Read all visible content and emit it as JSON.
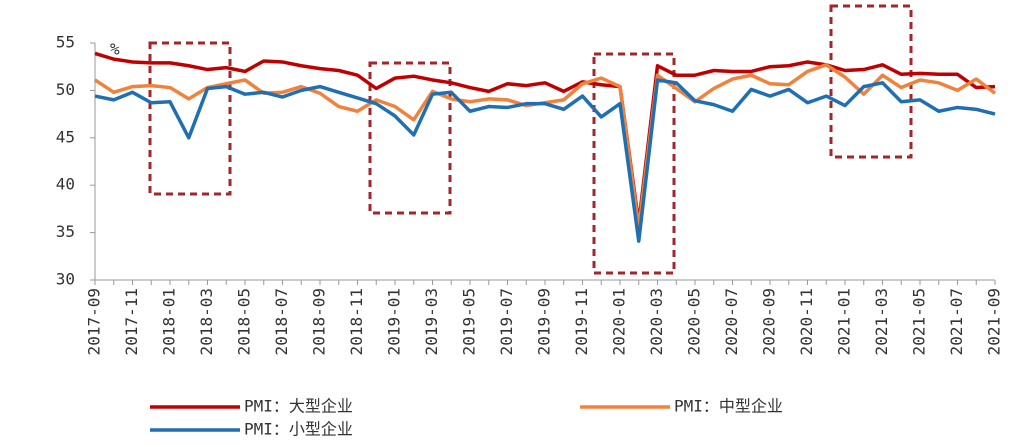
{
  "chart_data": {
    "type": "line",
    "y_unit": "%",
    "categories": [
      "2017-09",
      null,
      "2017-11",
      null,
      "2018-01",
      null,
      "2018-03",
      null,
      "2018-05",
      null,
      "2018-07",
      null,
      "2018-09",
      null,
      "2018-11",
      null,
      "2019-01",
      null,
      "2019-03",
      null,
      "2019-05",
      null,
      "2019-07",
      null,
      "2019-09",
      null,
      "2019-11",
      null,
      "2020-01",
      null,
      "2020-03",
      null,
      "2020-05",
      null,
      "2020-07",
      null,
      "2020-09",
      null,
      "2020-11",
      null,
      "2021-01",
      null,
      "2021-03",
      null,
      "2021-05",
      null,
      "2021-07",
      null,
      "2021-09"
    ],
    "series": [
      {
        "name": "PMI：大型企业",
        "color": "#c00000",
        "values": [
          53.9,
          53.3,
          53.0,
          52.9,
          52.9,
          52.6,
          52.2,
          52.4,
          52.0,
          53.1,
          53.0,
          52.6,
          52.3,
          52.1,
          51.6,
          50.2,
          51.3,
          51.5,
          51.1,
          50.8,
          50.3,
          49.9,
          50.7,
          50.5,
          50.8,
          49.9,
          50.9,
          50.6,
          50.4,
          36.0,
          52.6,
          51.6,
          51.6,
          52.1,
          52.0,
          52.0,
          52.5,
          52.6,
          53.0,
          52.7,
          52.1,
          52.2,
          52.7,
          51.7,
          51.8,
          51.7,
          51.7,
          50.3,
          50.4
        ]
      },
      {
        "name": "PMI：中型企业",
        "color": "#f0823c",
        "values": [
          51.1,
          49.8,
          50.4,
          50.5,
          50.3,
          49.1,
          50.3,
          50.7,
          51.1,
          49.7,
          49.8,
          50.4,
          49.7,
          48.3,
          47.8,
          49.0,
          48.3,
          46.9,
          49.9,
          49.1,
          48.8,
          49.1,
          49.0,
          48.4,
          48.7,
          49.0,
          50.7,
          51.3,
          50.4,
          35.5,
          51.6,
          50.2,
          48.8,
          50.2,
          51.2,
          51.6,
          50.7,
          50.6,
          52.0,
          52.7,
          51.4,
          49.6,
          51.6,
          50.3,
          51.1,
          50.8,
          50.0,
          51.2,
          49.7
        ]
      },
      {
        "name": "PMI：小型企业",
        "color": "#1f6fb2",
        "values": [
          49.4,
          49.0,
          49.8,
          48.7,
          48.8,
          45.0,
          50.2,
          50.4,
          49.6,
          49.8,
          49.3,
          50.0,
          50.4,
          49.8,
          49.2,
          48.6,
          47.3,
          45.3,
          49.6,
          49.8,
          47.8,
          48.3,
          48.2,
          48.6,
          48.6,
          48.0,
          49.4,
          47.2,
          48.6,
          34.1,
          51.1,
          50.8,
          48.9,
          48.5,
          47.8,
          50.1,
          49.4,
          50.1,
          48.7,
          49.4,
          48.4,
          50.4,
          50.8,
          48.8,
          49.0,
          47.8,
          48.2,
          48.0,
          47.5
        ]
      }
    ],
    "ylim": [
      30,
      55
    ],
    "yticks": [
      30,
      35,
      40,
      45,
      50,
      55
    ],
    "grid": false
  }
}
